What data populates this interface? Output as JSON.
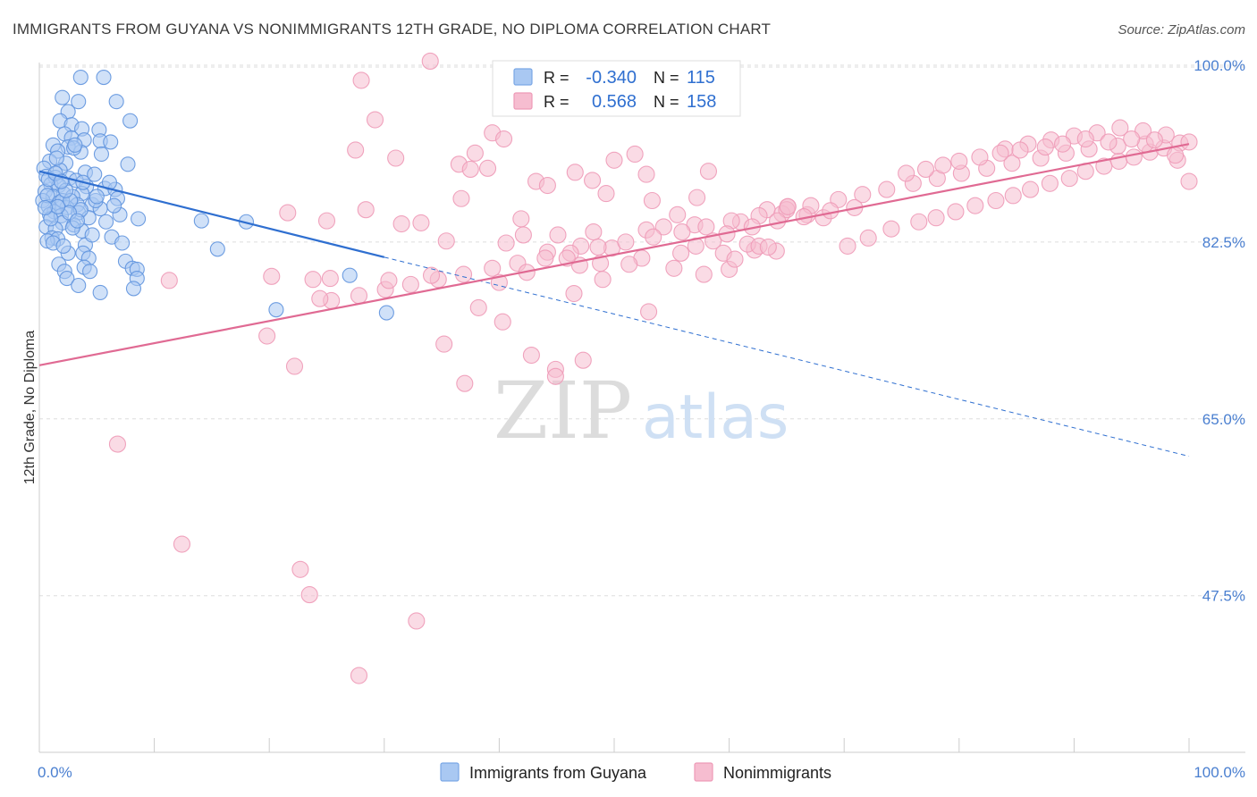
{
  "title": "IMMIGRANTS FROM GUYANA VS NONIMMIGRANTS 12TH GRADE, NO DIPLOMA CORRELATION CHART",
  "source": "Source: ZipAtlas.com",
  "watermark": {
    "zip": "ZIP",
    "atlas": "atlas"
  },
  "colors": {
    "guyana": "#2f6fd0",
    "guyana_fill": "#a9c8f2",
    "nonimm": "#e06a93",
    "nonimm_fill": "#f6bdd0",
    "grid": "#dddddd",
    "tick_text": "#4a7fd0"
  },
  "legend": {
    "row1": {
      "r_label": "R =",
      "r_value": "-0.340",
      "n_label": "N =",
      "n_value": "115"
    },
    "row2": {
      "r_label": "R =",
      "r_value": "0.568",
      "n_label": "N =",
      "n_value": "158"
    }
  },
  "bottom_legend": {
    "guyana": "Immigrants from Guyana",
    "nonimm": "Nonimmigrants"
  },
  "chart_data": {
    "type": "scatter",
    "ylabel": "12th Grade, No Diploma",
    "xlim": [
      0,
      100
    ],
    "ylim": [
      32,
      101.5
    ],
    "x_ticks": [
      "0.0%",
      "100.0%"
    ],
    "y_ticks": [
      {
        "value": 100,
        "label": "100.0%"
      },
      {
        "value": 82.5,
        "label": "82.5%"
      },
      {
        "value": 65,
        "label": "65.0%"
      },
      {
        "value": 47.5,
        "label": "47.5%"
      }
    ],
    "grid": "horizontal-dashed",
    "legend_position": "top-center",
    "series": [
      {
        "name": "Immigrants from Guyana",
        "key": "guyana",
        "trend": {
          "x0": 0,
          "y0": 89.5,
          "x1": 30,
          "y1": 81.0,
          "dash_to_x": 100,
          "dash_to_y": 61.3
        },
        "points": [
          [
            3.6,
            98.8
          ],
          [
            5.6,
            98.8
          ],
          [
            2.0,
            96.8
          ],
          [
            3.4,
            96.4
          ],
          [
            6.7,
            96.4
          ],
          [
            2.5,
            95.4
          ],
          [
            1.8,
            94.5
          ],
          [
            7.9,
            94.5
          ],
          [
            2.8,
            94.1
          ],
          [
            3.7,
            93.7
          ],
          [
            5.2,
            93.6
          ],
          [
            2.2,
            93.2
          ],
          [
            2.8,
            92.8
          ],
          [
            3.9,
            92.6
          ],
          [
            5.3,
            92.5
          ],
          [
            1.2,
            92.1
          ],
          [
            2.5,
            91.9
          ],
          [
            1.6,
            91.5
          ],
          [
            3.6,
            91.4
          ],
          [
            5.4,
            91.2
          ],
          [
            0.9,
            90.5
          ],
          [
            2.3,
            90.3
          ],
          [
            7.7,
            90.2
          ],
          [
            0.4,
            89.8
          ],
          [
            1.8,
            89.6
          ],
          [
            4.0,
            89.4
          ],
          [
            0.6,
            89.0
          ],
          [
            1.4,
            88.9
          ],
          [
            2.6,
            88.8
          ],
          [
            3.2,
            88.6
          ],
          [
            1.0,
            88.2
          ],
          [
            1.7,
            88.1
          ],
          [
            4.1,
            88.0
          ],
          [
            5.7,
            87.8
          ],
          [
            6.6,
            87.7
          ],
          [
            0.5,
            87.5
          ],
          [
            2.1,
            87.3
          ],
          [
            3.7,
            87.3
          ],
          [
            1.2,
            87.0
          ],
          [
            2.9,
            87.0
          ],
          [
            6.8,
            86.8
          ],
          [
            0.3,
            86.6
          ],
          [
            1.7,
            86.4
          ],
          [
            3.3,
            86.2
          ],
          [
            4.6,
            86.2
          ],
          [
            0.8,
            86.0
          ],
          [
            2.4,
            85.9
          ],
          [
            5.3,
            85.8
          ],
          [
            1.3,
            85.5
          ],
          [
            3.4,
            85.4
          ],
          [
            7.0,
            85.2
          ],
          [
            0.9,
            85.2
          ],
          [
            1.9,
            85.1
          ],
          [
            4.3,
            84.9
          ],
          [
            8.6,
            84.8
          ],
          [
            14.1,
            84.6
          ],
          [
            18.0,
            84.5
          ],
          [
            2.0,
            84.4
          ],
          [
            3.0,
            84.2
          ],
          [
            0.6,
            84.0
          ],
          [
            1.4,
            83.8
          ],
          [
            3.7,
            83.6
          ],
          [
            6.3,
            83.0
          ],
          [
            1.1,
            82.9
          ],
          [
            1.6,
            82.8
          ],
          [
            0.7,
            82.6
          ],
          [
            1.2,
            82.4
          ],
          [
            4.0,
            82.2
          ],
          [
            15.5,
            81.8
          ],
          [
            2.5,
            81.4
          ],
          [
            3.8,
            81.4
          ],
          [
            4.3,
            80.9
          ],
          [
            7.5,
            80.6
          ],
          [
            1.7,
            80.3
          ],
          [
            3.9,
            80.0
          ],
          [
            8.1,
            79.9
          ],
          [
            8.5,
            79.8
          ],
          [
            2.2,
            79.6
          ],
          [
            4.4,
            79.6
          ],
          [
            2.4,
            78.9
          ],
          [
            8.5,
            78.9
          ],
          [
            27.0,
            79.2
          ],
          [
            5.3,
            77.5
          ],
          [
            20.6,
            75.8
          ],
          [
            30.2,
            75.5
          ],
          [
            8.2,
            77.9
          ],
          [
            3.4,
            78.2
          ],
          [
            2.0,
            86.6
          ],
          [
            6.1,
            88.4
          ],
          [
            4.8,
            89.2
          ],
          [
            1.5,
            90.8
          ],
          [
            3.0,
            91.8
          ],
          [
            2.7,
            86.6
          ],
          [
            5.8,
            84.5
          ],
          [
            0.8,
            88.7
          ],
          [
            2.3,
            87.6
          ],
          [
            1.4,
            89.3
          ],
          [
            3.6,
            85.7
          ],
          [
            4.9,
            86.6
          ],
          [
            6.2,
            92.4
          ],
          [
            3.1,
            92.1
          ],
          [
            1.9,
            88.5
          ],
          [
            0.7,
            87.1
          ],
          [
            2.6,
            85.4
          ],
          [
            5.0,
            87.0
          ],
          [
            3.8,
            88.4
          ],
          [
            2.9,
            83.9
          ],
          [
            1.0,
            84.8
          ],
          [
            4.6,
            83.2
          ],
          [
            7.2,
            82.4
          ],
          [
            2.1,
            82.1
          ],
          [
            1.6,
            86.0
          ],
          [
            3.3,
            84.6
          ],
          [
            0.5,
            85.9
          ],
          [
            6.5,
            86.1
          ]
        ]
      },
      {
        "name": "Nonimmigrants",
        "key": "nonimm",
        "trend": {
          "x0": 0,
          "y0": 70.3,
          "x1": 100,
          "y1": 92.2
        },
        "points": [
          [
            34.0,
            100.4
          ],
          [
            28.0,
            98.5
          ],
          [
            29.2,
            94.6
          ],
          [
            39.4,
            93.3
          ],
          [
            40.4,
            92.7
          ],
          [
            27.5,
            91.6
          ],
          [
            37.9,
            91.3
          ],
          [
            31.0,
            90.8
          ],
          [
            36.5,
            90.2
          ],
          [
            51.8,
            91.2
          ],
          [
            50.0,
            90.6
          ],
          [
            39.0,
            89.8
          ],
          [
            37.5,
            89.7
          ],
          [
            43.2,
            88.5
          ],
          [
            46.6,
            89.4
          ],
          [
            52.8,
            89.2
          ],
          [
            58.2,
            89.5
          ],
          [
            48.1,
            88.6
          ],
          [
            44.2,
            88.1
          ],
          [
            49.3,
            87.3
          ],
          [
            57.2,
            86.9
          ],
          [
            53.3,
            86.6
          ],
          [
            36.7,
            86.8
          ],
          [
            28.4,
            85.7
          ],
          [
            21.6,
            85.4
          ],
          [
            25.0,
            84.6
          ],
          [
            33.2,
            84.4
          ],
          [
            31.5,
            84.3
          ],
          [
            41.9,
            84.8
          ],
          [
            55.5,
            85.2
          ],
          [
            63.3,
            85.7
          ],
          [
            65.1,
            86.0
          ],
          [
            64.6,
            85.3
          ],
          [
            66.8,
            85.2
          ],
          [
            68.2,
            84.9
          ],
          [
            61.0,
            84.5
          ],
          [
            57.0,
            84.2
          ],
          [
            54.3,
            84.0
          ],
          [
            52.8,
            83.7
          ],
          [
            48.2,
            83.5
          ],
          [
            45.1,
            83.2
          ],
          [
            42.1,
            83.2
          ],
          [
            35.4,
            82.6
          ],
          [
            40.6,
            82.4
          ],
          [
            44.2,
            81.5
          ],
          [
            47.1,
            82.1
          ],
          [
            49.8,
            81.9
          ],
          [
            55.8,
            81.4
          ],
          [
            59.5,
            81.4
          ],
          [
            62.2,
            81.7
          ],
          [
            61.6,
            82.3
          ],
          [
            64.1,
            81.6
          ],
          [
            70.3,
            82.1
          ],
          [
            72.1,
            82.9
          ],
          [
            74.1,
            83.8
          ],
          [
            76.5,
            84.5
          ],
          [
            78.0,
            84.9
          ],
          [
            79.7,
            85.5
          ],
          [
            81.4,
            86.1
          ],
          [
            83.2,
            86.6
          ],
          [
            84.7,
            87.1
          ],
          [
            86.2,
            87.7
          ],
          [
            87.9,
            88.3
          ],
          [
            89.6,
            88.8
          ],
          [
            91.0,
            89.5
          ],
          [
            92.6,
            90.0
          ],
          [
            93.9,
            90.5
          ],
          [
            95.2,
            90.9
          ],
          [
            96.6,
            91.4
          ],
          [
            97.8,
            91.8
          ],
          [
            99.2,
            92.3
          ],
          [
            100.0,
            92.4
          ],
          [
            96.2,
            92.2
          ],
          [
            93.8,
            92.0
          ],
          [
            91.3,
            91.7
          ],
          [
            89.3,
            91.3
          ],
          [
            87.1,
            90.8
          ],
          [
            84.6,
            90.3
          ],
          [
            82.4,
            89.8
          ],
          [
            80.2,
            89.3
          ],
          [
            78.1,
            88.8
          ],
          [
            76.0,
            88.3
          ],
          [
            73.7,
            87.7
          ],
          [
            71.6,
            87.2
          ],
          [
            69.5,
            86.7
          ],
          [
            67.1,
            86.1
          ],
          [
            65.0,
            85.7
          ],
          [
            62.6,
            85.1
          ],
          [
            60.2,
            84.6
          ],
          [
            58.0,
            84.0
          ],
          [
            55.9,
            83.5
          ],
          [
            53.4,
            83.0
          ],
          [
            51.0,
            82.5
          ],
          [
            48.6,
            82.0
          ],
          [
            46.2,
            81.4
          ],
          [
            44.0,
            80.9
          ],
          [
            41.6,
            80.4
          ],
          [
            39.4,
            79.9
          ],
          [
            36.9,
            79.3
          ],
          [
            34.7,
            78.8
          ],
          [
            32.3,
            78.3
          ],
          [
            30.1,
            77.8
          ],
          [
            27.8,
            77.2
          ],
          [
            25.4,
            76.7
          ],
          [
            98.0,
            93.1
          ],
          [
            96.0,
            93.5
          ],
          [
            94.0,
            93.8
          ],
          [
            92.0,
            93.3
          ],
          [
            90.0,
            93.0
          ],
          [
            88.0,
            92.6
          ],
          [
            86.0,
            92.2
          ],
          [
            84.0,
            91.7
          ],
          [
            97.0,
            92.6
          ],
          [
            99.0,
            90.6
          ],
          [
            100.0,
            88.5
          ],
          [
            98.8,
            91.1
          ],
          [
            95.0,
            92.7
          ],
          [
            93.0,
            92.4
          ],
          [
            91.0,
            92.7
          ],
          [
            89.0,
            92.2
          ],
          [
            87.5,
            91.9
          ],
          [
            85.3,
            91.6
          ],
          [
            83.6,
            91.3
          ],
          [
            81.8,
            90.9
          ],
          [
            80.0,
            90.5
          ],
          [
            78.6,
            90.1
          ],
          [
            77.1,
            89.7
          ],
          [
            75.4,
            89.3
          ],
          [
            70.9,
            85.9
          ],
          [
            68.8,
            85.6
          ],
          [
            66.5,
            85.0
          ],
          [
            64.2,
            84.6
          ],
          [
            62.0,
            84.0
          ],
          [
            59.8,
            83.3
          ],
          [
            58.6,
            82.6
          ],
          [
            57.1,
            82.1
          ],
          [
            47.0,
            80.2
          ],
          [
            45.9,
            80.9
          ],
          [
            42.4,
            79.5
          ],
          [
            40.0,
            78.5
          ],
          [
            38.2,
            76.0
          ],
          [
            34.1,
            79.2
          ],
          [
            30.4,
            78.7
          ],
          [
            25.3,
            78.9
          ],
          [
            24.4,
            76.9
          ],
          [
            23.8,
            78.8
          ],
          [
            20.2,
            79.1
          ],
          [
            19.8,
            73.2
          ],
          [
            22.2,
            70.2
          ],
          [
            11.3,
            78.7
          ],
          [
            46.5,
            77.4
          ],
          [
            48.8,
            80.4
          ],
          [
            52.4,
            80.9
          ],
          [
            57.8,
            79.3
          ],
          [
            60.0,
            79.8
          ],
          [
            62.6,
            82.1
          ],
          [
            6.8,
            62.5
          ],
          [
            12.4,
            52.6
          ],
          [
            22.7,
            50.1
          ],
          [
            23.5,
            47.6
          ],
          [
            32.8,
            45.0
          ],
          [
            27.8,
            39.6
          ],
          [
            44.9,
            69.9
          ],
          [
            47.3,
            70.8
          ],
          [
            65.1,
            86.0
          ],
          [
            51.3,
            80.3
          ],
          [
            49.0,
            78.8
          ],
          [
            55.2,
            79.9
          ],
          [
            53.0,
            75.6
          ],
          [
            60.5,
            80.8
          ],
          [
            63.4,
            82.0
          ],
          [
            40.3,
            74.6
          ],
          [
            35.2,
            72.4
          ],
          [
            42.8,
            71.3
          ],
          [
            37.0,
            68.5
          ],
          [
            44.9,
            69.2
          ]
        ]
      }
    ]
  }
}
